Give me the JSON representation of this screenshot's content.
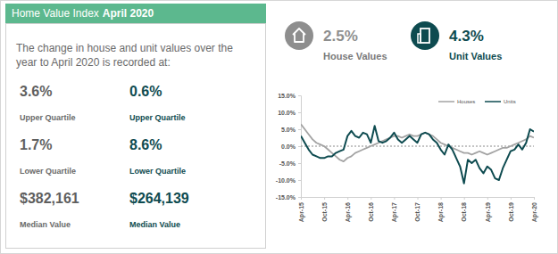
{
  "header": {
    "title": "Home Value Index",
    "period": "April 2020"
  },
  "intro": [
    "The change in house and unit values over the",
    "year to April 2020 is recorded at:"
  ],
  "highlights": [
    {
      "value": "2.5%",
      "label": "House Values"
    },
    {
      "value": "4.3%",
      "label": "Unit Values"
    }
  ],
  "stats": [
    [
      {
        "value": "3.6%",
        "label": "Upper Quartile"
      },
      {
        "value": "0.6%",
        "label": "Upper Quartile"
      }
    ],
    [
      {
        "value": "1.7%",
        "label": "Lower Quartile"
      },
      {
        "value": "8.6%",
        "label": "Lower Quartile"
      }
    ],
    [
      {
        "value": "$382,161",
        "label": "Median Value"
      },
      {
        "value": "$264,139",
        "label": "Median Value"
      }
    ]
  ],
  "chart_data": {
    "type": "line",
    "categories": [
      "Apr-15",
      null,
      null,
      null,
      null,
      null,
      "Oct-15",
      null,
      null,
      null,
      null,
      null,
      "Apr-16",
      null,
      null,
      null,
      null,
      null,
      "Oct-16",
      null,
      null,
      null,
      null,
      null,
      "Apr-17",
      null,
      null,
      null,
      null,
      null,
      "Oct-17",
      null,
      null,
      null,
      null,
      null,
      "Apr-18",
      null,
      null,
      null,
      null,
      null,
      "Oct-18",
      null,
      null,
      null,
      null,
      null,
      "Apr-19",
      null,
      null,
      null,
      null,
      null,
      "Oct-19",
      null,
      null,
      null,
      null,
      null,
      "Apr-20"
    ],
    "series": [
      {
        "name": "Houses",
        "color": "#a3a3a3",
        "values": [
          6.5,
          5,
          3.5,
          2,
          1,
          0.5,
          0,
          -1,
          -2,
          -3,
          -4,
          -4.5,
          -3.5,
          -3,
          -2,
          -1.5,
          -1,
          -0.5,
          0,
          0.5,
          1,
          1.5,
          2,
          2.5,
          3,
          3,
          2.5,
          3,
          3.5,
          3,
          3,
          3.5,
          4,
          3.5,
          3,
          2,
          1,
          0.5,
          0,
          -0.5,
          -1,
          -1.5,
          -2,
          -2,
          -2.5,
          -2,
          -1.5,
          -2,
          -2.5,
          -2,
          -1.5,
          -1,
          -0.5,
          -0.5,
          0,
          0.5,
          1,
          1.5,
          2,
          3,
          2.5
        ]
      },
      {
        "name": "Units",
        "color": "#0e4b50",
        "values": [
          3,
          1,
          -1,
          -2.5,
          -3,
          -3.5,
          -3.5,
          -3,
          -3,
          -2,
          -1.5,
          -1,
          3,
          4.5,
          3,
          2.5,
          4,
          3.5,
          1,
          6,
          1.5,
          1,
          1.5,
          2.5,
          4,
          2,
          1,
          2,
          3,
          2,
          1,
          3.5,
          4,
          3.5,
          2,
          1,
          -1,
          -2.5,
          0.5,
          -1,
          -3.5,
          -6,
          -11,
          -4,
          -5,
          -4,
          -6.5,
          -8,
          -6,
          -7,
          -9.5,
          -10,
          -6.5,
          -4,
          -1.5,
          -1,
          0.5,
          -1,
          1,
          5,
          4.3
        ]
      }
    ],
    "ylim": [
      -15,
      15
    ],
    "yticks": [
      {
        "value": 15,
        "label": "15.0%"
      },
      {
        "value": 10,
        "label": "10.0%"
      },
      {
        "value": 5,
        "label": "5.0%"
      },
      {
        "value": 0,
        "label": "0.0%"
      },
      {
        "value": -5,
        "label": "-5.0%"
      },
      {
        "value": -10,
        "label": "-10.0%"
      },
      {
        "value": -15,
        "label": "-15.0%"
      }
    ],
    "grid": false,
    "legend": "top-right"
  }
}
